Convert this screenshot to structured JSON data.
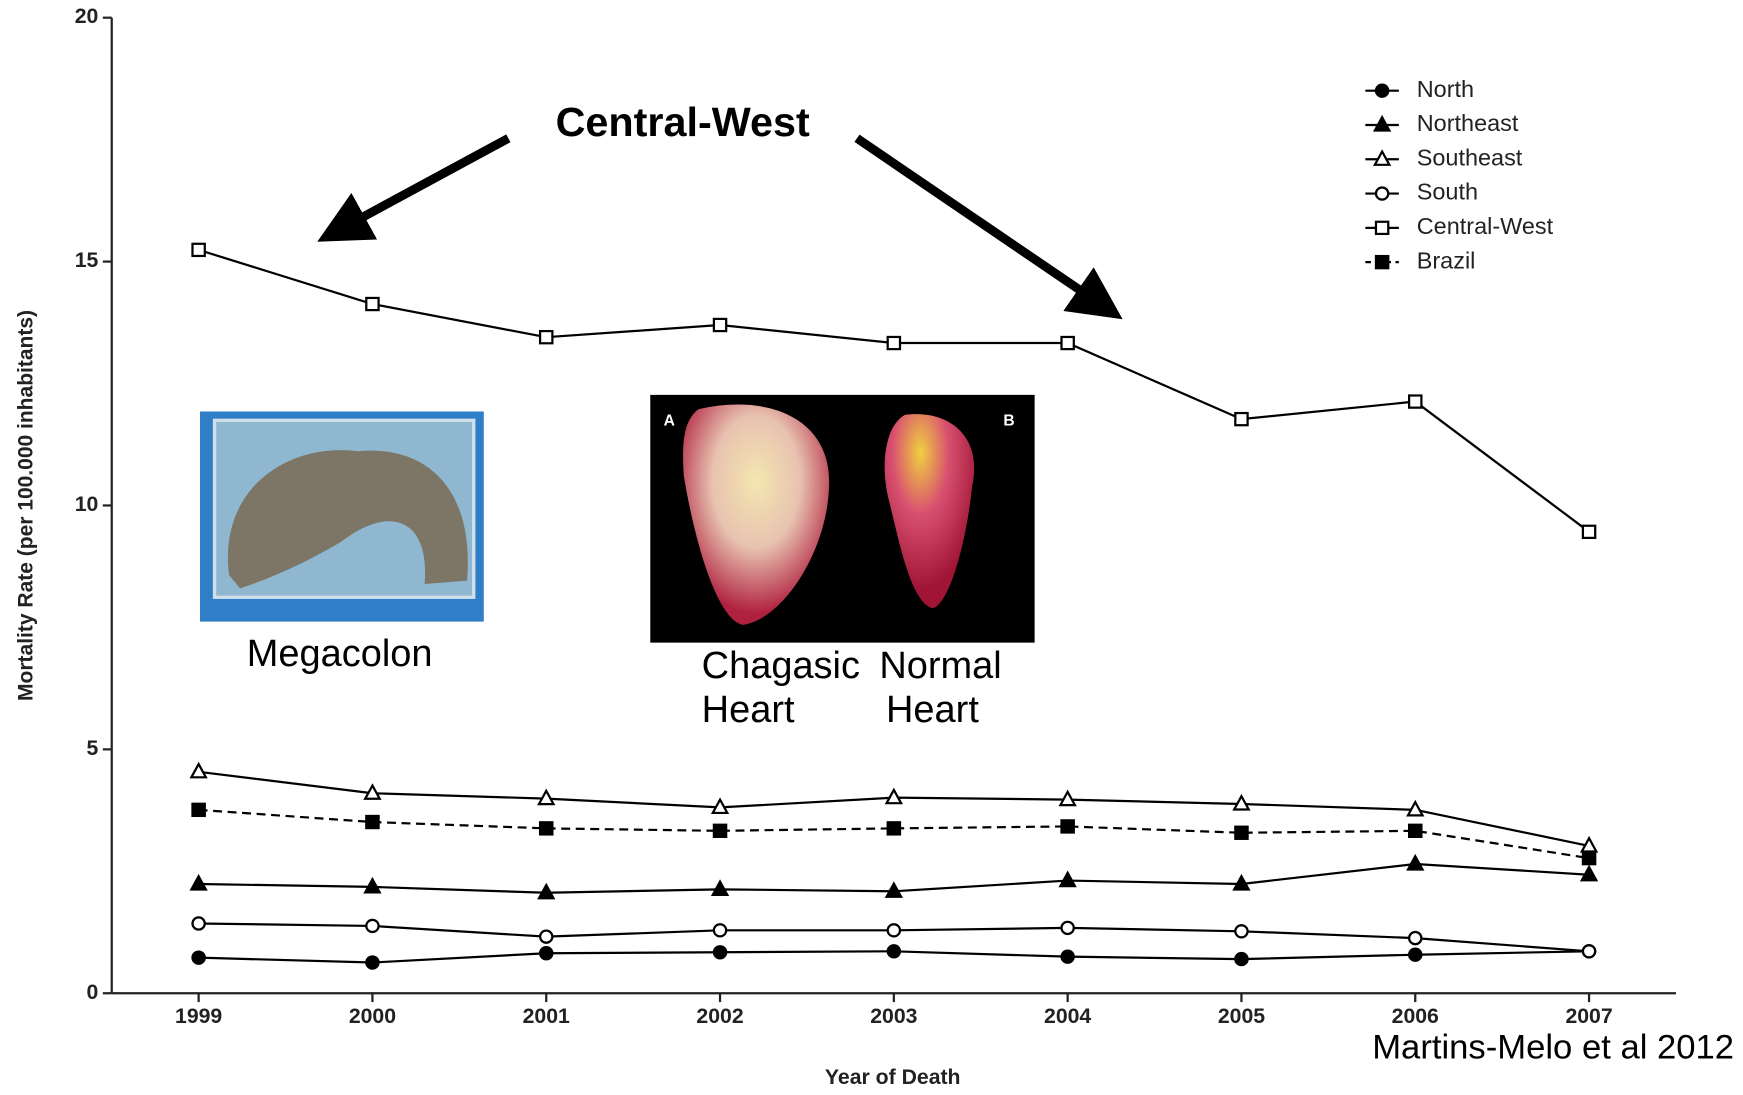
{
  "chart_data": {
    "type": "line",
    "x_label": "Year of Death",
    "y_label": "Mortality Rate (per 100.000 inhabitants)",
    "x": [
      1999,
      2000,
      2001,
      2002,
      2003,
      2004,
      2005,
      2006,
      2007
    ],
    "xlim": [
      1998.5,
      2007.5
    ],
    "xticks": [
      1999,
      2000,
      2001,
      2002,
      2003,
      2004,
      2005,
      2006,
      2007
    ],
    "ylim": [
      0,
      20
    ],
    "yticks": [
      0,
      5,
      10,
      15,
      20
    ],
    "legend": "upper right",
    "series": [
      {
        "name": "North",
        "color": "#000000",
        "marker": "circle",
        "filled": true,
        "dashed": false,
        "values": [
          0.73,
          0.63,
          0.82,
          0.84,
          0.86,
          0.75,
          0.7,
          0.79,
          0.86
        ]
      },
      {
        "name": "Northeast",
        "color": "#000000",
        "marker": "triangle",
        "filled": true,
        "dashed": false,
        "values": [
          2.24,
          2.18,
          2.06,
          2.13,
          2.09,
          2.31,
          2.24,
          2.65,
          2.43
        ]
      },
      {
        "name": "Southeast",
        "color": "#000000",
        "marker": "triangle",
        "filled": false,
        "dashed": false,
        "values": [
          4.54,
          4.1,
          3.99,
          3.81,
          4.01,
          3.97,
          3.88,
          3.76,
          3.02
        ]
      },
      {
        "name": "South",
        "color": "#000000",
        "marker": "circle",
        "filled": false,
        "dashed": false,
        "values": [
          1.43,
          1.38,
          1.16,
          1.29,
          1.29,
          1.34,
          1.27,
          1.13,
          0.86
        ]
      },
      {
        "name": "Central-West",
        "color": "#000000",
        "marker": "square",
        "filled": false,
        "dashed": false,
        "values": [
          15.24,
          14.13,
          13.45,
          13.7,
          13.33,
          13.33,
          11.77,
          12.13,
          9.46
        ]
      },
      {
        "name": "Brazil",
        "color": "#000000",
        "marker": "square",
        "filled": true,
        "dashed": true,
        "values": [
          3.76,
          3.51,
          3.38,
          3.33,
          3.38,
          3.42,
          3.29,
          3.33,
          2.77
        ]
      }
    ],
    "annotations": {
      "callout": "Central-West",
      "megacolon": "Megacolon",
      "chagasic": [
        "Chagasic",
        "Heart"
      ],
      "normal": [
        "Normal",
        "Heart"
      ],
      "panel_a": "A",
      "panel_b": "B",
      "citation": "Martins-Melo et al 2012"
    }
  }
}
